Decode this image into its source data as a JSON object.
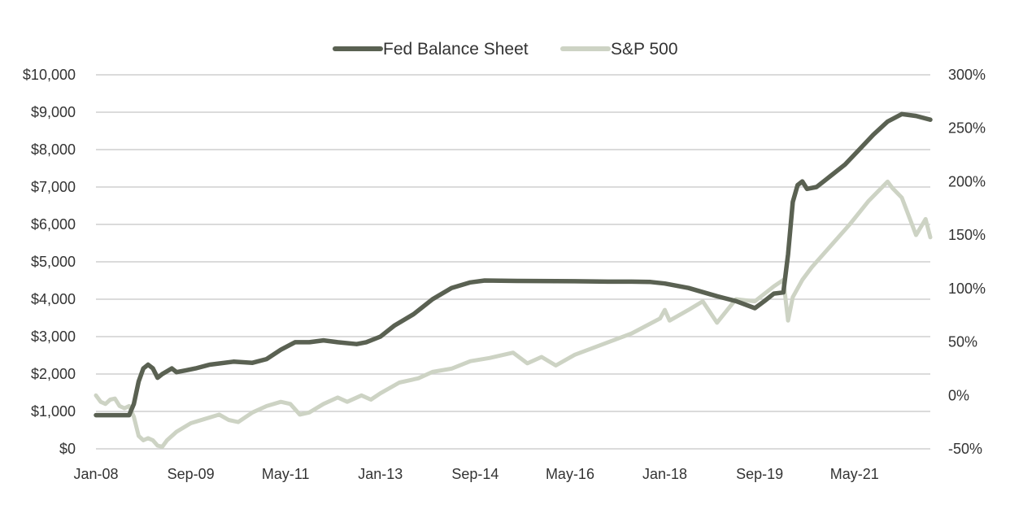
{
  "chart_data": {
    "type": "line",
    "title": "",
    "legend_position": "top-center",
    "grid": true,
    "x_ticks": [
      "Jan-08",
      "Sep-09",
      "May-11",
      "Jan-13",
      "Sep-14",
      "May-16",
      "Jan-18",
      "Sep-19",
      "May-21"
    ],
    "x_range": [
      "2008-01",
      "2022-09"
    ],
    "y_left": {
      "ylim": [
        0,
        10000
      ],
      "tick_labels": [
        "$0",
        "$1,000",
        "$2,000",
        "$3,000",
        "$4,000",
        "$5,000",
        "$6,000",
        "$7,000",
        "$8,000",
        "$9,000",
        "$10,000"
      ]
    },
    "y_right": {
      "ylim": [
        -50,
        300
      ],
      "tick_labels": [
        "-50%",
        "0%",
        "50%",
        "100%",
        "150%",
        "200%",
        "250%",
        "300%"
      ]
    },
    "series": [
      {
        "name": "Fed Balance Sheet",
        "axis": "left",
        "color": "#5a6152",
        "points": [
          [
            "2008-01",
            900
          ],
          [
            "2008-05",
            900
          ],
          [
            "2008-08",
            900
          ],
          [
            "2008-09",
            1200
          ],
          [
            "2008-10",
            1800
          ],
          [
            "2008-11",
            2150
          ],
          [
            "2008-12",
            2250
          ],
          [
            "2009-01",
            2150
          ],
          [
            "2009-02",
            1900
          ],
          [
            "2009-03",
            2000
          ],
          [
            "2009-05",
            2150
          ],
          [
            "2009-06",
            2050
          ],
          [
            "2009-08",
            2100
          ],
          [
            "2009-10",
            2150
          ],
          [
            "2010-01",
            2250
          ],
          [
            "2010-06",
            2330
          ],
          [
            "2010-10",
            2300
          ],
          [
            "2011-01",
            2400
          ],
          [
            "2011-04",
            2650
          ],
          [
            "2011-07",
            2850
          ],
          [
            "2011-10",
            2850
          ],
          [
            "2012-01",
            2900
          ],
          [
            "2012-04",
            2850
          ],
          [
            "2012-08",
            2800
          ],
          [
            "2012-10",
            2850
          ],
          [
            "2013-01",
            3000
          ],
          [
            "2013-04",
            3300
          ],
          [
            "2013-08",
            3600
          ],
          [
            "2013-12",
            4000
          ],
          [
            "2014-04",
            4300
          ],
          [
            "2014-08",
            4450
          ],
          [
            "2014-11",
            4500
          ],
          [
            "2015-06",
            4490
          ],
          [
            "2016-06",
            4480
          ],
          [
            "2017-01",
            4470
          ],
          [
            "2017-06",
            4470
          ],
          [
            "2017-10",
            4460
          ],
          [
            "2018-01",
            4420
          ],
          [
            "2018-06",
            4300
          ],
          [
            "2018-12",
            4080
          ],
          [
            "2019-04",
            3950
          ],
          [
            "2019-08",
            3760
          ],
          [
            "2019-10",
            3950
          ],
          [
            "2019-12",
            4150
          ],
          [
            "2020-02",
            4180
          ],
          [
            "2020-03",
            5200
          ],
          [
            "2020-04",
            6600
          ],
          [
            "2020-05",
            7050
          ],
          [
            "2020-06",
            7150
          ],
          [
            "2020-07",
            6950
          ],
          [
            "2020-09",
            7000
          ],
          [
            "2020-12",
            7300
          ],
          [
            "2021-03",
            7600
          ],
          [
            "2021-06",
            8000
          ],
          [
            "2021-09",
            8400
          ],
          [
            "2021-12",
            8750
          ],
          [
            "2022-03",
            8950
          ],
          [
            "2022-06",
            8900
          ],
          [
            "2022-09",
            8800
          ]
        ]
      },
      {
        "name": "S&P 500",
        "axis": "right",
        "color": "#cdd3c4",
        "points": [
          [
            "2008-01",
            0
          ],
          [
            "2008-02",
            -6
          ],
          [
            "2008-03",
            -8
          ],
          [
            "2008-04",
            -4
          ],
          [
            "2008-05",
            -3
          ],
          [
            "2008-06",
            -10
          ],
          [
            "2008-07",
            -12
          ],
          [
            "2008-08",
            -10
          ],
          [
            "2008-09",
            -20
          ],
          [
            "2008-10",
            -38
          ],
          [
            "2008-11",
            -42
          ],
          [
            "2008-12",
            -40
          ],
          [
            "2009-01",
            -42
          ],
          [
            "2009-02",
            -47
          ],
          [
            "2009-03",
            -48
          ],
          [
            "2009-04",
            -42
          ],
          [
            "2009-06",
            -34
          ],
          [
            "2009-09",
            -26
          ],
          [
            "2009-12",
            -22
          ],
          [
            "2010-03",
            -18
          ],
          [
            "2010-05",
            -23
          ],
          [
            "2010-07",
            -25
          ],
          [
            "2010-10",
            -16
          ],
          [
            "2011-01",
            -10
          ],
          [
            "2011-04",
            -6
          ],
          [
            "2011-06",
            -8
          ],
          [
            "2011-08",
            -18
          ],
          [
            "2011-10",
            -16
          ],
          [
            "2012-01",
            -8
          ],
          [
            "2012-04",
            -2
          ],
          [
            "2012-06",
            -6
          ],
          [
            "2012-09",
            0
          ],
          [
            "2012-11",
            -4
          ],
          [
            "2013-01",
            2
          ],
          [
            "2013-05",
            12
          ],
          [
            "2013-09",
            16
          ],
          [
            "2013-12",
            22
          ],
          [
            "2014-04",
            25
          ],
          [
            "2014-08",
            32
          ],
          [
            "2014-12",
            35
          ],
          [
            "2015-05",
            40
          ],
          [
            "2015-08",
            30
          ],
          [
            "2015-11",
            36
          ],
          [
            "2016-02",
            28
          ],
          [
            "2016-06",
            38
          ],
          [
            "2016-12",
            48
          ],
          [
            "2017-06",
            58
          ],
          [
            "2017-12",
            72
          ],
          [
            "2018-01",
            80
          ],
          [
            "2018-02",
            70
          ],
          [
            "2018-06",
            80
          ],
          [
            "2018-09",
            88
          ],
          [
            "2018-12",
            68
          ],
          [
            "2019-04",
            90
          ],
          [
            "2019-08",
            88
          ],
          [
            "2019-12",
            102
          ],
          [
            "2020-02",
            108
          ],
          [
            "2020-03",
            70
          ],
          [
            "2020-04",
            92
          ],
          [
            "2020-06",
            108
          ],
          [
            "2020-08",
            120
          ],
          [
            "2020-12",
            140
          ],
          [
            "2021-04",
            160
          ],
          [
            "2021-08",
            182
          ],
          [
            "2021-12",
            200
          ],
          [
            "2022-01",
            194
          ],
          [
            "2022-03",
            185
          ],
          [
            "2022-06",
            150
          ],
          [
            "2022-08",
            165
          ],
          [
            "2022-09",
            148
          ]
        ]
      }
    ]
  }
}
